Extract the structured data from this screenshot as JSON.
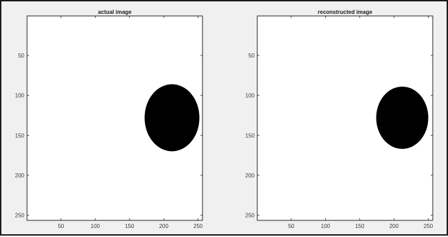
{
  "figure": {
    "panels": [
      {
        "title": "actual image",
        "x_ticks": [
          50,
          100,
          150,
          200,
          250
        ],
        "y_ticks": [
          50,
          100,
          150,
          200,
          250
        ],
        "xlim": [
          0.5,
          256.5
        ],
        "ylim": [
          0.5,
          256.5
        ],
        "blob": {
          "center": [
            212,
            128
          ],
          "radius_x": 40,
          "radius_y": 42,
          "clip_right_edge": true
        }
      },
      {
        "title": "reconstructed image",
        "x_ticks": [
          50,
          100,
          150,
          200,
          250
        ],
        "y_ticks": [
          50,
          100,
          150,
          200,
          250
        ],
        "xlim": [
          0.5,
          256.5
        ],
        "ylim": [
          0.5,
          256.5
        ],
        "blob": {
          "center": [
            212,
            128
          ],
          "radius_x": 38,
          "radius_y": 39,
          "clip_right_edge": true
        }
      }
    ],
    "colors": {
      "background": "#f0f0f0",
      "axes_face": "#ffffff",
      "axes_edge": "#262626",
      "blob": "#000000"
    }
  }
}
